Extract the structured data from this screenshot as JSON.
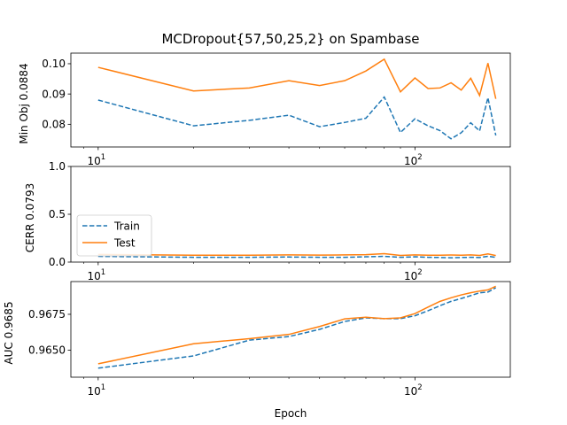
{
  "chart_data": [
    {
      "type": "line",
      "title": "MCDropout{57,50,25,2} on Spambase",
      "ylabel": "Min Obj 0.0884",
      "xscale": "log",
      "xlim": [
        8.2,
        200
      ],
      "ylim": [
        0.0725,
        0.1035
      ],
      "yticks": [
        "0.08",
        "0.09",
        "0.10"
      ],
      "ytick_values": [
        0.08,
        0.09,
        0.1
      ],
      "xticks": [
        {
          "base": "10",
          "exp": "1",
          "value": 10
        },
        {
          "base": "10",
          "exp": "2",
          "value": 100
        }
      ],
      "x": [
        10,
        20,
        30,
        40,
        50,
        60,
        70,
        80,
        90,
        100,
        110,
        120,
        130,
        140,
        150,
        160,
        170,
        180
      ],
      "series": [
        {
          "name": "Train",
          "color": "#1f77b4",
          "style": "dashed",
          "values": [
            0.088,
            0.0795,
            0.0813,
            0.083,
            0.0792,
            0.0806,
            0.082,
            0.089,
            0.0773,
            0.0818,
            0.0795,
            0.0779,
            0.0752,
            0.0772,
            0.0805,
            0.0778,
            0.0888,
            0.0763
          ]
        },
        {
          "name": "Test",
          "color": "#ff7f0e",
          "style": "solid",
          "values": [
            0.0988,
            0.091,
            0.092,
            0.0944,
            0.0928,
            0.0944,
            0.0976,
            0.1015,
            0.0907,
            0.0953,
            0.0918,
            0.092,
            0.0937,
            0.0913,
            0.0952,
            0.0895,
            0.1002,
            0.0884
          ]
        }
      ]
    },
    {
      "type": "line",
      "title": "",
      "ylabel": "CERR 0.0793",
      "xscale": "log",
      "xlim": [
        8.2,
        200
      ],
      "ylim": [
        0,
        1
      ],
      "yticks": [
        "0.0",
        "0.5",
        "1.0"
      ],
      "ytick_values": [
        0,
        0.5,
        1.0
      ],
      "xticks": [
        {
          "base": "10",
          "exp": "1",
          "value": 10
        },
        {
          "base": "10",
          "exp": "2",
          "value": 100
        }
      ],
      "legend": {
        "placement": "left",
        "entries": [
          "Train",
          "Test"
        ]
      },
      "x": [
        10,
        20,
        30,
        40,
        50,
        60,
        70,
        80,
        90,
        100,
        110,
        120,
        130,
        140,
        150,
        160,
        170,
        180
      ],
      "series": [
        {
          "name": "Train",
          "color": "#1f77b4",
          "style": "dashed",
          "values": [
            0.06,
            0.05,
            0.05,
            0.053,
            0.05,
            0.05,
            0.055,
            0.06,
            0.05,
            0.055,
            0.05,
            0.048,
            0.045,
            0.048,
            0.05,
            0.048,
            0.06,
            0.05
          ]
        },
        {
          "name": "Test",
          "color": "#ff7f0e",
          "style": "solid",
          "values": [
            0.08,
            0.072,
            0.072,
            0.075,
            0.073,
            0.075,
            0.078,
            0.088,
            0.07,
            0.075,
            0.072,
            0.072,
            0.074,
            0.072,
            0.075,
            0.07,
            0.085,
            0.068
          ]
        }
      ]
    },
    {
      "type": "line",
      "title": "",
      "ylabel": "AUC 0.9685",
      "xlabel": "Epoch",
      "xscale": "log",
      "xlim": [
        8.2,
        200
      ],
      "ylim": [
        0.96312,
        0.96978
      ],
      "yticks": [
        "0.9650",
        "0.9675"
      ],
      "ytick_values": [
        0.965,
        0.9675
      ],
      "xticks": [
        {
          "base": "10",
          "exp": "1",
          "value": 10
        },
        {
          "base": "10",
          "exp": "2",
          "value": 100
        }
      ],
      "x": [
        10,
        20,
        30,
        40,
        50,
        60,
        70,
        80,
        90,
        100,
        110,
        120,
        130,
        140,
        150,
        160,
        170,
        180
      ],
      "series": [
        {
          "name": "Train",
          "color": "#1f77b4",
          "style": "dashed",
          "values": [
            0.96375,
            0.9646,
            0.9657,
            0.96595,
            0.96645,
            0.967,
            0.96725,
            0.9672,
            0.9672,
            0.9674,
            0.96775,
            0.9681,
            0.9684,
            0.9686,
            0.9688,
            0.969,
            0.96905,
            0.96935
          ]
        },
        {
          "name": "Test",
          "color": "#ff7f0e",
          "style": "solid",
          "values": [
            0.96405,
            0.96545,
            0.9658,
            0.9661,
            0.96665,
            0.96718,
            0.9673,
            0.9672,
            0.96725,
            0.96755,
            0.968,
            0.9684,
            0.96865,
            0.96885,
            0.969,
            0.96912,
            0.9692,
            0.96945
          ]
        }
      ]
    }
  ]
}
